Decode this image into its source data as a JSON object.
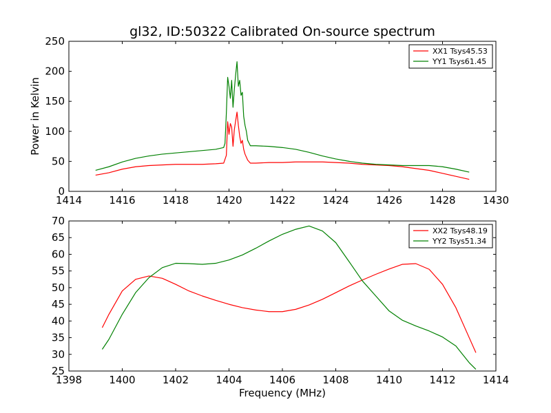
{
  "figure": {
    "title": "gl32, ID:50322 Calibrated On-source spectrum",
    "background": "#ffffff"
  },
  "chart_data": [
    {
      "type": "line",
      "title": "gl32, ID:50322 Calibrated On-source spectrum",
      "xlabel": "",
      "ylabel": "Power in Kelvin",
      "xlim": [
        1414,
        1430
      ],
      "ylim": [
        0,
        250
      ],
      "xticks": [
        1414,
        1416,
        1418,
        1420,
        1422,
        1424,
        1426,
        1428,
        1430
      ],
      "yticks": [
        0,
        50,
        100,
        150,
        200,
        250
      ],
      "grid": false,
      "legend_position": "top-right",
      "series": [
        {
          "name": "XX1 Tsys45.53",
          "color": "#ff0000",
          "points": [
            [
              1415.0,
              27
            ],
            [
              1415.5,
              31
            ],
            [
              1416.0,
              37
            ],
            [
              1416.5,
              41
            ],
            [
              1417.0,
              43
            ],
            [
              1417.5,
              44
            ],
            [
              1418.0,
              45
            ],
            [
              1418.5,
              45
            ],
            [
              1419.0,
              45
            ],
            [
              1419.5,
              46
            ],
            [
              1419.8,
              47
            ],
            [
              1419.9,
              60
            ],
            [
              1419.95,
              116
            ],
            [
              1420.0,
              95
            ],
            [
              1420.05,
              113
            ],
            [
              1420.1,
              107
            ],
            [
              1420.15,
              75
            ],
            [
              1420.2,
              103
            ],
            [
              1420.25,
              118
            ],
            [
              1420.3,
              132
            ],
            [
              1420.35,
              110
            ],
            [
              1420.4,
              92
            ],
            [
              1420.45,
              80
            ],
            [
              1420.5,
              85
            ],
            [
              1420.55,
              70
            ],
            [
              1420.6,
              62
            ],
            [
              1420.7,
              52
            ],
            [
              1420.8,
              47
            ],
            [
              1421.0,
              47
            ],
            [
              1421.5,
              48
            ],
            [
              1422.0,
              48
            ],
            [
              1422.5,
              49
            ],
            [
              1423.0,
              49
            ],
            [
              1423.5,
              49
            ],
            [
              1424.0,
              48
            ],
            [
              1424.5,
              47
            ],
            [
              1425.0,
              45
            ],
            [
              1425.5,
              44
            ],
            [
              1426.0,
              43
            ],
            [
              1426.5,
              41
            ],
            [
              1427.0,
              38
            ],
            [
              1427.5,
              35
            ],
            [
              1428.0,
              30
            ],
            [
              1428.5,
              25
            ],
            [
              1429.0,
              20
            ]
          ]
        },
        {
          "name": "YY1 Tsys61.45",
          "color": "#008000",
          "points": [
            [
              1415.0,
              35
            ],
            [
              1415.5,
              41
            ],
            [
              1416.0,
              49
            ],
            [
              1416.5,
              55
            ],
            [
              1417.0,
              59
            ],
            [
              1417.5,
              62
            ],
            [
              1418.0,
              64
            ],
            [
              1418.5,
              66
            ],
            [
              1419.0,
              68
            ],
            [
              1419.5,
              70
            ],
            [
              1419.8,
              73
            ],
            [
              1419.85,
              80
            ],
            [
              1419.9,
              130
            ],
            [
              1419.95,
              190
            ],
            [
              1420.0,
              175
            ],
            [
              1420.05,
              155
            ],
            [
              1420.1,
              185
            ],
            [
              1420.15,
              140
            ],
            [
              1420.2,
              170
            ],
            [
              1420.25,
              195
            ],
            [
              1420.3,
              216
            ],
            [
              1420.35,
              175
            ],
            [
              1420.4,
              185
            ],
            [
              1420.45,
              160
            ],
            [
              1420.5,
              165
            ],
            [
              1420.55,
              125
            ],
            [
              1420.6,
              110
            ],
            [
              1420.65,
              100
            ],
            [
              1420.7,
              85
            ],
            [
              1420.8,
              76
            ],
            [
              1421.0,
              76
            ],
            [
              1421.5,
              75
            ],
            [
              1422.0,
              73
            ],
            [
              1422.5,
              70
            ],
            [
              1423.0,
              65
            ],
            [
              1423.5,
              59
            ],
            [
              1424.0,
              54
            ],
            [
              1424.5,
              50
            ],
            [
              1425.0,
              47
            ],
            [
              1425.5,
              45
            ],
            [
              1426.0,
              44
            ],
            [
              1426.5,
              43
            ],
            [
              1427.0,
              43
            ],
            [
              1427.5,
              43
            ],
            [
              1428.0,
              41
            ],
            [
              1428.5,
              37
            ],
            [
              1429.0,
              32
            ]
          ]
        }
      ]
    },
    {
      "type": "line",
      "title": "",
      "xlabel": "Frequency (MHz)",
      "ylabel": "",
      "xlim": [
        1398,
        1414
      ],
      "ylim": [
        25,
        70
      ],
      "xticks": [
        1398,
        1400,
        1402,
        1404,
        1406,
        1408,
        1410,
        1412,
        1414
      ],
      "yticks": [
        25,
        30,
        35,
        40,
        45,
        50,
        55,
        60,
        65,
        70
      ],
      "grid": false,
      "legend_position": "top-right",
      "series": [
        {
          "name": "XX2 Tsys48.19",
          "color": "#ff0000",
          "points": [
            [
              1399.25,
              38
            ],
            [
              1399.5,
              42
            ],
            [
              1400.0,
              49
            ],
            [
              1400.5,
              52.5
            ],
            [
              1401.0,
              53.5
            ],
            [
              1401.5,
              52.8
            ],
            [
              1402.0,
              51
            ],
            [
              1402.5,
              49
            ],
            [
              1403.0,
              47.5
            ],
            [
              1403.5,
              46.2
            ],
            [
              1404.0,
              45
            ],
            [
              1404.5,
              44
            ],
            [
              1405.0,
              43.3
            ],
            [
              1405.5,
              42.8
            ],
            [
              1406.0,
              42.8
            ],
            [
              1406.5,
              43.5
            ],
            [
              1407.0,
              44.8
            ],
            [
              1407.5,
              46.5
            ],
            [
              1408.0,
              48.5
            ],
            [
              1408.5,
              50.5
            ],
            [
              1409.0,
              52.3
            ],
            [
              1409.5,
              54
            ],
            [
              1410.0,
              55.6
            ],
            [
              1410.5,
              57
            ],
            [
              1411.0,
              57.2
            ],
            [
              1411.5,
              55.5
            ],
            [
              1412.0,
              51
            ],
            [
              1412.5,
              44
            ],
            [
              1413.0,
              35
            ],
            [
              1413.25,
              30.5
            ]
          ]
        },
        {
          "name": "YY2 Tsys51.34",
          "color": "#008000",
          "points": [
            [
              1399.25,
              31.5
            ],
            [
              1399.5,
              34.5
            ],
            [
              1400.0,
              42
            ],
            [
              1400.5,
              48.5
            ],
            [
              1401.0,
              53
            ],
            [
              1401.5,
              56
            ],
            [
              1402.0,
              57.3
            ],
            [
              1402.5,
              57.2
            ],
            [
              1403.0,
              57
            ],
            [
              1403.5,
              57.3
            ],
            [
              1404.0,
              58.3
            ],
            [
              1404.5,
              59.8
            ],
            [
              1405.0,
              61.8
            ],
            [
              1405.5,
              64
            ],
            [
              1406.0,
              66
            ],
            [
              1406.5,
              67.5
            ],
            [
              1407.0,
              68.5
            ],
            [
              1407.5,
              67
            ],
            [
              1408.0,
              63.5
            ],
            [
              1408.5,
              57.8
            ],
            [
              1409.0,
              52
            ],
            [
              1409.5,
              47.5
            ],
            [
              1410.0,
              43
            ],
            [
              1410.5,
              40.2
            ],
            [
              1411.0,
              38.5
            ],
            [
              1411.5,
              37
            ],
            [
              1412.0,
              35.2
            ],
            [
              1412.5,
              32.5
            ],
            [
              1413.0,
              27.5
            ],
            [
              1413.25,
              25.5
            ]
          ]
        }
      ]
    }
  ]
}
